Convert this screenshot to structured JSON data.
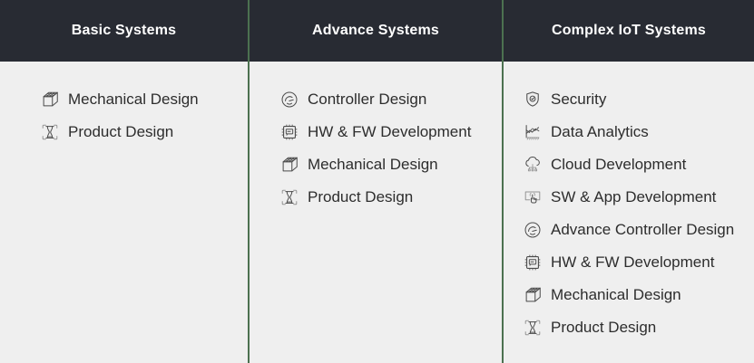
{
  "columns": [
    {
      "title": "Basic Systems",
      "items": [
        {
          "label": "Mechanical Design",
          "icon": "mechanical-design-icon"
        },
        {
          "label": "Product Design",
          "icon": "product-design-icon"
        }
      ]
    },
    {
      "title": "Advance Systems",
      "items": [
        {
          "label": "Controller Design",
          "icon": "controller-gauge-icon"
        },
        {
          "label": "HW & FW Development",
          "icon": "chip-icon"
        },
        {
          "label": "Mechanical Design",
          "icon": "mechanical-design-icon"
        },
        {
          "label": "Product Design",
          "icon": "product-design-icon"
        }
      ]
    },
    {
      "title": "Complex IoT Systems",
      "items": [
        {
          "label": "Security",
          "icon": "security-shield-icon"
        },
        {
          "label": "Data Analytics",
          "icon": "data-analytics-icon"
        },
        {
          "label": "Cloud Development",
          "icon": "cloud-icon"
        },
        {
          "label": "SW & App Development",
          "icon": "touch-screen-icon"
        },
        {
          "label": "Advance Controller Design",
          "icon": "controller-gauge-icon"
        },
        {
          "label": "HW & FW Development",
          "icon": "chip-icon"
        },
        {
          "label": "Mechanical Design",
          "icon": "mechanical-design-icon"
        },
        {
          "label": "Product Design",
          "icon": "product-design-icon"
        }
      ]
    }
  ],
  "colors": {
    "header_bg": "#282b33",
    "header_text": "#ffffff",
    "body_bg": "#efefef",
    "item_text": "#2d2d2d",
    "divider_green": "#4c7150",
    "icon_stroke": "#4b4b4b",
    "icon_stroke_light": "#959595"
  }
}
